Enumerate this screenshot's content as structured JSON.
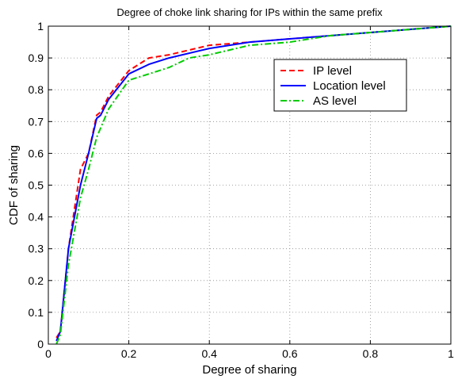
{
  "chart_data": {
    "type": "line",
    "title": "Degree of choke link sharing for IPs within the same prefix",
    "xlabel": "Degree of sharing",
    "ylabel": "CDF of sharing",
    "xlim": [
      0,
      1
    ],
    "ylim": [
      0,
      1
    ],
    "xticks": [
      "0",
      "0.2",
      "0.4",
      "0.6",
      "0.8",
      "1"
    ],
    "xtick_values": [
      0,
      0.2,
      0.4,
      0.6,
      0.8,
      1
    ],
    "yticks": [
      "0",
      "0.1",
      "0.2",
      "0.3",
      "0.4",
      "0.5",
      "0.6",
      "0.7",
      "0.8",
      "0.9",
      "1"
    ],
    "ytick_values": [
      0,
      0.1,
      0.2,
      0.3,
      0.4,
      0.5,
      0.6,
      0.7,
      0.8,
      0.9,
      1
    ],
    "grid": true,
    "legend_position": "top-right",
    "series": [
      {
        "name": "IP level",
        "color": "#ff0000",
        "style": "dashed",
        "x": [
          0.02,
          0.03,
          0.05,
          0.08,
          0.1,
          0.12,
          0.13,
          0.15,
          0.2,
          0.25,
          0.3,
          0.4,
          0.5,
          0.6,
          0.7,
          0.8,
          0.9,
          1.0
        ],
        "y": [
          0.02,
          0.04,
          0.3,
          0.55,
          0.6,
          0.72,
          0.73,
          0.78,
          0.86,
          0.9,
          0.91,
          0.94,
          0.95,
          0.96,
          0.97,
          0.98,
          0.99,
          1.0
        ]
      },
      {
        "name": "Location level",
        "color": "#0000ff",
        "style": "solid",
        "x": [
          0.02,
          0.03,
          0.05,
          0.08,
          0.1,
          0.12,
          0.13,
          0.15,
          0.2,
          0.25,
          0.3,
          0.4,
          0.5,
          0.6,
          0.7,
          0.8,
          0.9,
          1.0
        ],
        "y": [
          0.01,
          0.04,
          0.3,
          0.5,
          0.6,
          0.71,
          0.72,
          0.77,
          0.85,
          0.88,
          0.9,
          0.93,
          0.95,
          0.96,
          0.97,
          0.98,
          0.99,
          1.0
        ]
      },
      {
        "name": "AS level",
        "color": "#00cc00",
        "style": "dashdot",
        "x": [
          0.02,
          0.03,
          0.05,
          0.08,
          0.1,
          0.12,
          0.15,
          0.2,
          0.25,
          0.3,
          0.35,
          0.4,
          0.5,
          0.6,
          0.7,
          0.8,
          0.9,
          1.0
        ],
        "y": [
          0.0,
          0.03,
          0.25,
          0.46,
          0.55,
          0.65,
          0.74,
          0.83,
          0.85,
          0.87,
          0.9,
          0.91,
          0.94,
          0.95,
          0.97,
          0.98,
          0.99,
          1.0
        ]
      }
    ]
  }
}
